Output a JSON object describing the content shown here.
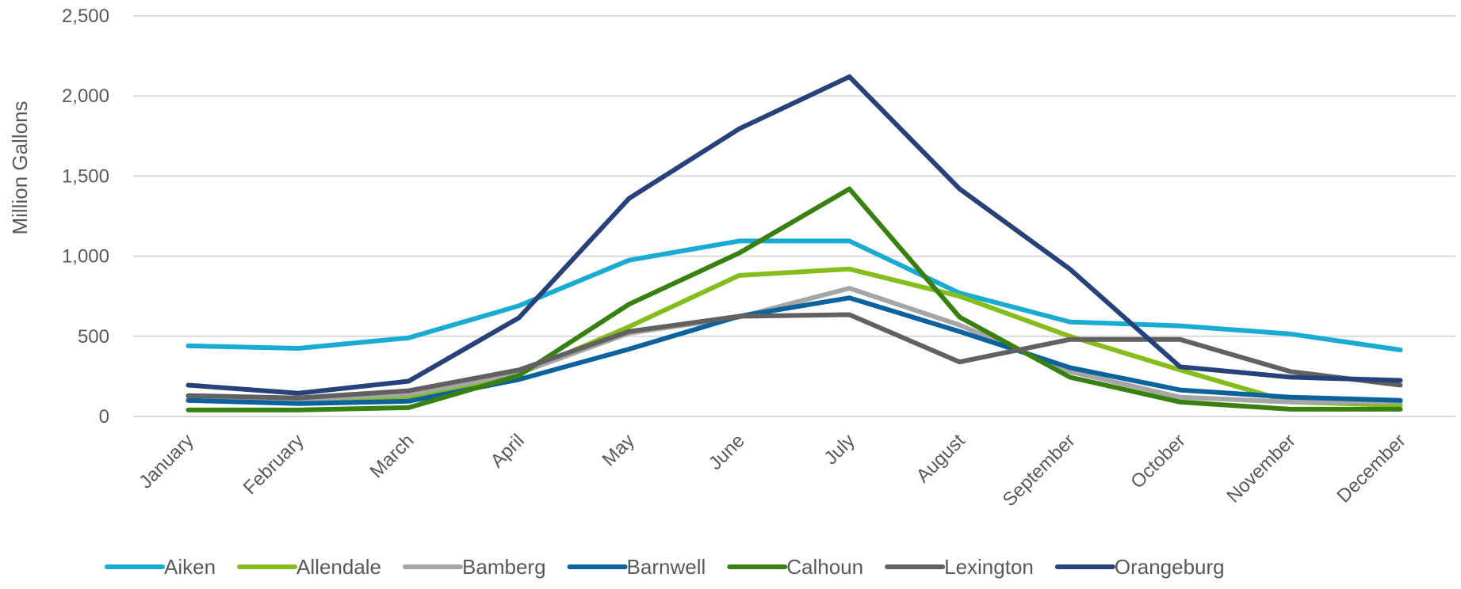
{
  "chart_data": {
    "type": "line",
    "title": "",
    "xlabel": "",
    "ylabel": "Million Gallons",
    "ylim": [
      0,
      2500
    ],
    "yticks": [
      0,
      500,
      1000,
      1500,
      2000,
      2500
    ],
    "ytick_labels": [
      "0",
      "500",
      "1,000",
      "1,500",
      "2,000",
      "2,500"
    ],
    "grid": true,
    "legend_position": "bottom",
    "categories": [
      "January",
      "February",
      "March",
      "April",
      "May",
      "June",
      "July",
      "August",
      "September",
      "October",
      "November",
      "December"
    ],
    "series": [
      {
        "name": "Aiken",
        "color": "#1AABD3",
        "values": [
          440,
          425,
          490,
          690,
          975,
          1095,
          1095,
          770,
          590,
          565,
          515,
          415
        ]
      },
      {
        "name": "Allendale",
        "color": "#84BD1C",
        "values": [
          100,
          90,
          120,
          265,
          560,
          880,
          920,
          750,
          500,
          290,
          90,
          70
        ]
      },
      {
        "name": "Bamberg",
        "color": "#A6A6A6",
        "values": [
          120,
          105,
          140,
          270,
          520,
          620,
          800,
          570,
          280,
          120,
          90,
          90
        ]
      },
      {
        "name": "Barnwell",
        "color": "#0C629C",
        "values": [
          100,
          80,
          95,
          230,
          420,
          625,
          740,
          530,
          305,
          165,
          120,
          100
        ]
      },
      {
        "name": "Calhoun",
        "color": "#38800F",
        "values": [
          40,
          40,
          55,
          255,
          700,
          1020,
          1420,
          620,
          245,
          90,
          45,
          45
        ]
      },
      {
        "name": "Lexington",
        "color": "#616161",
        "values": [
          130,
          115,
          160,
          290,
          530,
          625,
          635,
          340,
          480,
          480,
          280,
          195
        ]
      },
      {
        "name": "Orangeburg",
        "color": "#27427A",
        "values": [
          195,
          145,
          220,
          615,
          1360,
          1795,
          2120,
          1420,
          920,
          310,
          245,
          225
        ]
      }
    ]
  }
}
